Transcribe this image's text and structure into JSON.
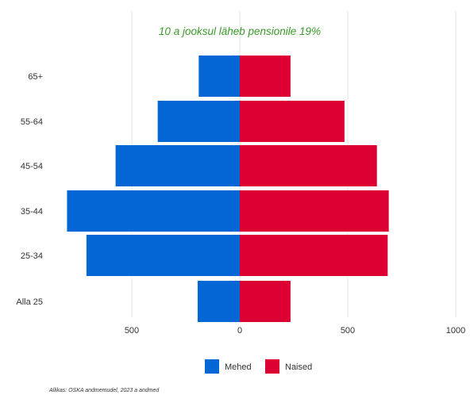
{
  "chart_data": {
    "type": "bar",
    "orientation": "horizontal",
    "title": "10 a jooksul läheb pensionile 19%",
    "categories": [
      "65+",
      "55-64",
      "45-54",
      "35-44",
      "25-34",
      "Alla 25"
    ],
    "series": [
      {
        "name": "Mehed",
        "values": [
          -190,
          -380,
          -575,
          -800,
          -710,
          -195
        ]
      },
      {
        "name": "Naised",
        "values": [
          235,
          485,
          635,
          690,
          685,
          235
        ]
      }
    ],
    "x_ticks": [
      {
        "value": -500,
        "label": "500"
      },
      {
        "value": 0,
        "label": "0"
      },
      {
        "value": 500,
        "label": "500"
      },
      {
        "value": 1000,
        "label": "1000"
      }
    ],
    "xlim": [
      -810,
      1000
    ],
    "grid": "vertical",
    "legend_position": "bottom",
    "source_note": "Allikas: OSKA andmemudel, 2023 a andmed",
    "colors": {
      "Mehed": "#0566d6",
      "Naised": "#dc0032",
      "title": "#3a9a2a",
      "grid": "#e6e6e6",
      "text": "#333333"
    }
  }
}
